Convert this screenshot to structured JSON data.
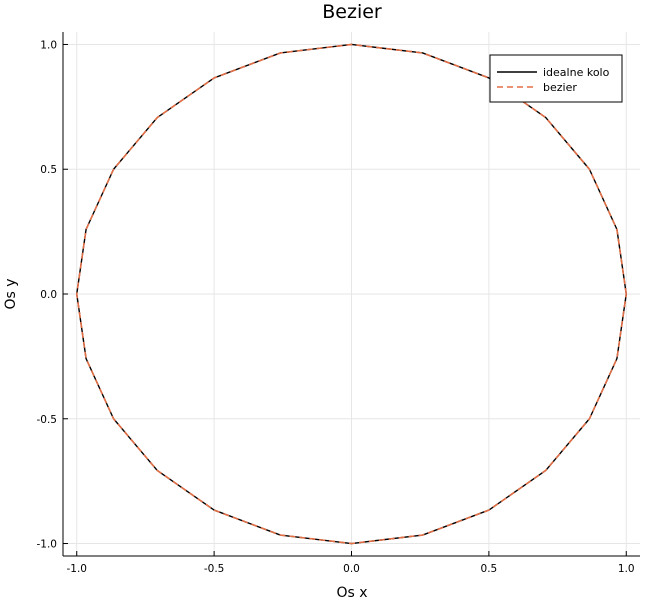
{
  "chart_data": {
    "type": "line",
    "title": "Bezier",
    "xlabel": "Os x",
    "ylabel": "Os y",
    "xlim": [
      -1.05,
      1.05
    ],
    "ylim": [
      -1.05,
      1.05
    ],
    "xticks": [
      -1.0,
      -0.5,
      0.0,
      0.5,
      1.0
    ],
    "yticks": [
      -1.0,
      -0.5,
      0.0,
      0.5,
      1.0
    ],
    "xtick_labels": [
      "-1.0",
      "-0.5",
      "0.0",
      "0.5",
      "1.0"
    ],
    "ytick_labels": [
      "-1.0",
      "-0.5",
      "0.0",
      "0.5",
      "1.0"
    ],
    "grid": true,
    "legend_position": "top-right",
    "series": [
      {
        "name": "idealne kolo",
        "style": "solid",
        "color": "#000000",
        "x": [
          1.0,
          0.966,
          0.866,
          0.707,
          0.5,
          0.259,
          0.0,
          -0.259,
          -0.5,
          -0.707,
          -0.866,
          -0.966,
          -1.0,
          -0.966,
          -0.866,
          -0.707,
          -0.5,
          -0.259,
          0.0,
          0.259,
          0.5,
          0.707,
          0.866,
          0.966,
          1.0
        ],
        "y": [
          0.0,
          0.259,
          0.5,
          0.707,
          0.866,
          0.966,
          1.0,
          0.966,
          0.866,
          0.707,
          0.5,
          0.259,
          0.0,
          -0.259,
          -0.5,
          -0.707,
          -0.866,
          -0.966,
          -1.0,
          -0.966,
          -0.866,
          -0.707,
          -0.5,
          -0.259,
          0.0
        ]
      },
      {
        "name": "bezier",
        "style": "dashed",
        "color": "#e26f46",
        "x": [
          1.0,
          0.966,
          0.866,
          0.707,
          0.5,
          0.259,
          0.0,
          -0.259,
          -0.5,
          -0.707,
          -0.866,
          -0.966,
          -1.0,
          -0.966,
          -0.866,
          -0.707,
          -0.5,
          -0.259,
          0.0,
          0.259,
          0.5,
          0.707,
          0.866,
          0.966,
          1.0
        ],
        "y": [
          0.0,
          0.259,
          0.5,
          0.707,
          0.866,
          0.966,
          1.0,
          0.966,
          0.866,
          0.707,
          0.5,
          0.259,
          0.0,
          -0.259,
          -0.5,
          -0.707,
          -0.866,
          -0.966,
          -1.0,
          -0.966,
          -0.866,
          -0.707,
          -0.5,
          -0.259,
          0.0
        ]
      }
    ]
  }
}
